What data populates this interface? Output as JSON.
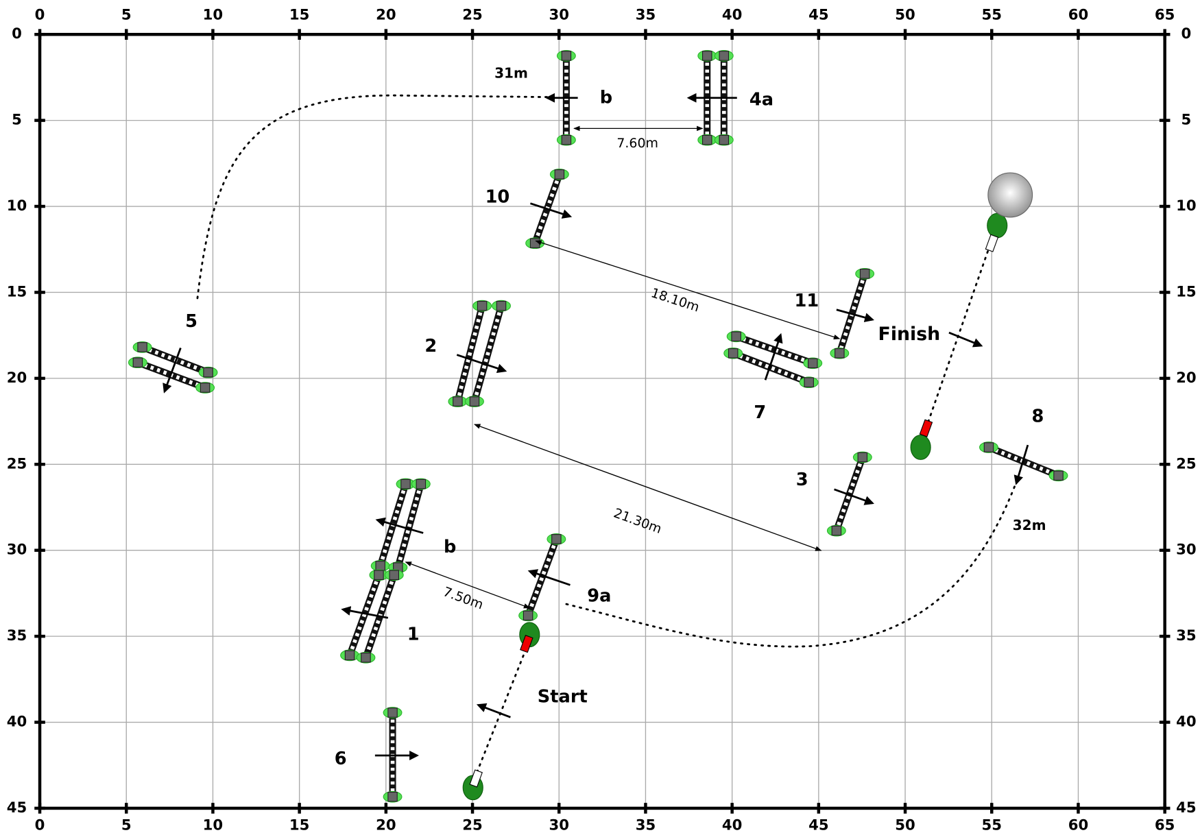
{
  "axes": {
    "x_ticks": [
      0,
      5,
      10,
      15,
      20,
      25,
      30,
      35,
      40,
      45,
      50,
      55,
      60,
      65
    ],
    "y_ticks": [
      0,
      5,
      10,
      15,
      20,
      25,
      30,
      35,
      40,
      45
    ]
  },
  "labels": [
    "31m",
    "b",
    "4a",
    "10",
    "11",
    "Finish",
    "5",
    "2",
    "7",
    "8",
    "3",
    "32m",
    "b",
    "9a",
    "1",
    "Start",
    "6"
  ],
  "distances": [
    "7.60m",
    "18.10m",
    "21.30m",
    "7.50m"
  ]
}
